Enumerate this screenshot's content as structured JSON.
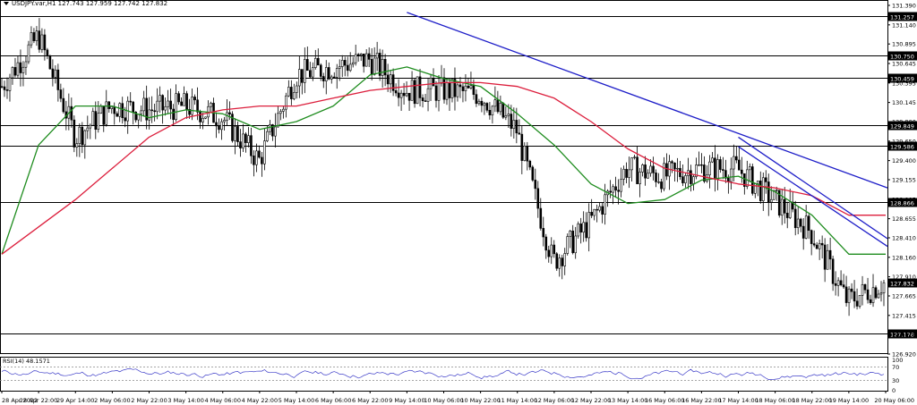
{
  "window": {
    "symbol_line": "USDJPY.var,H1  127.743 127.959 127.742 127.832",
    "indicator_label": "RSI(14) 48.1571"
  },
  "colors": {
    "background": "#ffffff",
    "bull_candle": "#000000",
    "bear_candle": "#000000",
    "ma_fast": "#1e8c1e",
    "ma_slow": "#dc1e3c",
    "trendline": "#1e1ec8",
    "level_line": "#000000",
    "rsi_line": "#3c3cc8"
  },
  "price_axis": {
    "ticks": [
      "131.390",
      "131.140",
      "130.895",
      "130.645",
      "130.395",
      "130.145",
      "129.900",
      "129.650",
      "129.400",
      "129.155",
      "128.905",
      "128.655",
      "128.410",
      "128.160",
      "127.910",
      "127.665",
      "127.415",
      "127.170",
      "126.920"
    ]
  },
  "levels": [
    {
      "label": "131.257",
      "price": 131.257
    },
    {
      "label": "130.750",
      "price": 130.75
    },
    {
      "label": "130.459",
      "price": 130.459
    },
    {
      "label": "129.849",
      "price": 129.849
    },
    {
      "label": "129.586",
      "price": 129.586
    },
    {
      "label": "128.866",
      "price": 128.866
    },
    {
      "label": "127.178",
      "price": 127.178
    }
  ],
  "current_price": {
    "label": "127.832",
    "price": 127.832
  },
  "rsi_axis": {
    "ticks": [
      "100",
      "70",
      "30",
      "0"
    ]
  },
  "time_axis": {
    "labels": [
      "28 Apr 2022",
      "28 Apr 22:00",
      "29 Apr 14:00",
      "2 May 06:00",
      "2 May 22:00",
      "3 May 14:00",
      "4 May 06:00",
      "4 May 22:00",
      "5 May 14:00",
      "6 May 06:00",
      "6 May 22:00",
      "9 May 14:00",
      "10 May 06:00",
      "10 May 22:00",
      "11 May 14:00",
      "12 May 06:00",
      "12 May 22:00",
      "13 May 14:00",
      "16 May 06:00",
      "16 May 22:00",
      "17 May 14:00",
      "18 May 06:00",
      "18 May 22:00",
      "19 May 14:00",
      "20 May 06:00"
    ]
  },
  "chart_data": {
    "type": "line",
    "title": "USDJPY.var,H1",
    "ohlc_last": {
      "open": 127.743,
      "high": 127.959,
      "low": 127.742,
      "close": 127.832
    },
    "ylim": [
      126.92,
      131.39
    ],
    "price_path": [
      {
        "x": "28 Apr 2022",
        "y": 130.35
      },
      {
        "x": "28 Apr 22:00",
        "y": 131.0
      },
      {
        "x": "29 Apr 14:00",
        "y": 129.7
      },
      {
        "x": "2 May 06:00",
        "y": 130.1
      },
      {
        "x": "2 May 22:00",
        "y": 130.05
      },
      {
        "x": "3 May 14:00",
        "y": 130.1
      },
      {
        "x": "4 May 06:00",
        "y": 129.95
      },
      {
        "x": "4 May 22:00",
        "y": 129.4
      },
      {
        "x": "5 May 14:00",
        "y": 130.5
      },
      {
        "x": "6 May 06:00",
        "y": 130.6
      },
      {
        "x": "6 May 22:00",
        "y": 130.7
      },
      {
        "x": "9 May 14:00",
        "y": 130.3
      },
      {
        "x": "10 May 06:00",
        "y": 130.3
      },
      {
        "x": "10 May 22:00",
        "y": 130.25
      },
      {
        "x": "11 May 14:00",
        "y": 129.8
      },
      {
        "x": "12 May 06:00",
        "y": 128.1
      },
      {
        "x": "12 May 22:00",
        "y": 128.6
      },
      {
        "x": "13 May 14:00",
        "y": 129.3
      },
      {
        "x": "16 May 06:00",
        "y": 129.2
      },
      {
        "x": "16 May 22:00",
        "y": 129.3
      },
      {
        "x": "17 May 14:00",
        "y": 129.3
      },
      {
        "x": "18 May 06:00",
        "y": 128.9
      },
      {
        "x": "18 May 22:00",
        "y": 128.5
      },
      {
        "x": "19 May 14:00",
        "y": 127.6
      },
      {
        "x": "20 May 06:00",
        "y": 127.83
      }
    ],
    "moving_averages": [
      {
        "name": "fast MA",
        "color": "#1e8c1e",
        "y": [
          128.2,
          129.6,
          130.1,
          130.1,
          129.95,
          130.05,
          130.0,
          129.8,
          129.9,
          130.1,
          130.5,
          130.6,
          130.45,
          130.35,
          130.0,
          129.6,
          129.1,
          128.85,
          128.9,
          129.15,
          129.2,
          129.0,
          128.7,
          128.2,
          128.2
        ]
      },
      {
        "name": "slow MA",
        "color": "#dc1e3c",
        "y": [
          128.2,
          128.55,
          128.9,
          129.3,
          129.7,
          129.95,
          130.05,
          130.1,
          130.1,
          130.2,
          130.3,
          130.35,
          130.4,
          130.4,
          130.35,
          130.2,
          129.9,
          129.55,
          129.3,
          129.2,
          129.1,
          129.05,
          128.95,
          128.7,
          128.7
        ]
      }
    ],
    "trendlines": [
      {
        "from": {
          "x": "9 May 14:00",
          "y": 131.3
        },
        "to": {
          "x": "20 May 06:00",
          "y": 129.05
        }
      },
      {
        "from": {
          "x": "17 May 14:00",
          "y": 129.7
        },
        "to": {
          "x": "20 May 06:00",
          "y": 128.4
        }
      },
      {
        "from": {
          "x": "17 May 14:00",
          "y": 129.58
        },
        "to": {
          "x": "20 May 06:00",
          "y": 128.3
        }
      }
    ],
    "rsi": {
      "label": "RSI(14)",
      "last": 48.1571,
      "levels": [
        70,
        30
      ],
      "ylim": [
        0,
        100
      ]
    }
  }
}
